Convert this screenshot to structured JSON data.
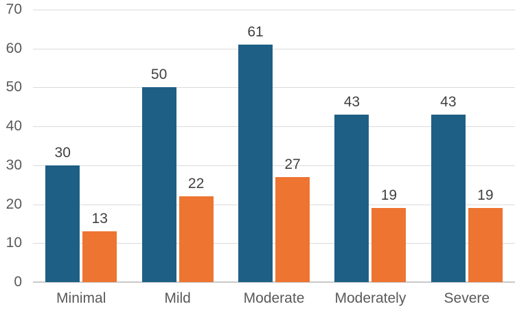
{
  "chart_data": {
    "type": "bar",
    "title": "",
    "xlabel": "",
    "ylabel": "",
    "categories": [
      "Minimal",
      "Mild",
      "Moderate",
      "Moderately",
      "Severe"
    ],
    "series": [
      {
        "name": "series-blue",
        "color": "#1e5f85",
        "values": [
          30,
          50,
          61,
          43,
          43
        ]
      },
      {
        "name": "series-orange",
        "color": "#ed7431",
        "values": [
          13,
          22,
          27,
          19,
          19
        ]
      }
    ],
    "ylim": [
      0,
      70
    ],
    "yticks": [
      0,
      10,
      20,
      30,
      40,
      50,
      60,
      70
    ],
    "grid": true,
    "legend": false,
    "value_labels": true
  },
  "colors": {
    "gridline": "#dadada",
    "axis_line": "#c9c9c9",
    "tick_text": "#595959",
    "value_text": "#404040",
    "background": "#ffffff"
  }
}
